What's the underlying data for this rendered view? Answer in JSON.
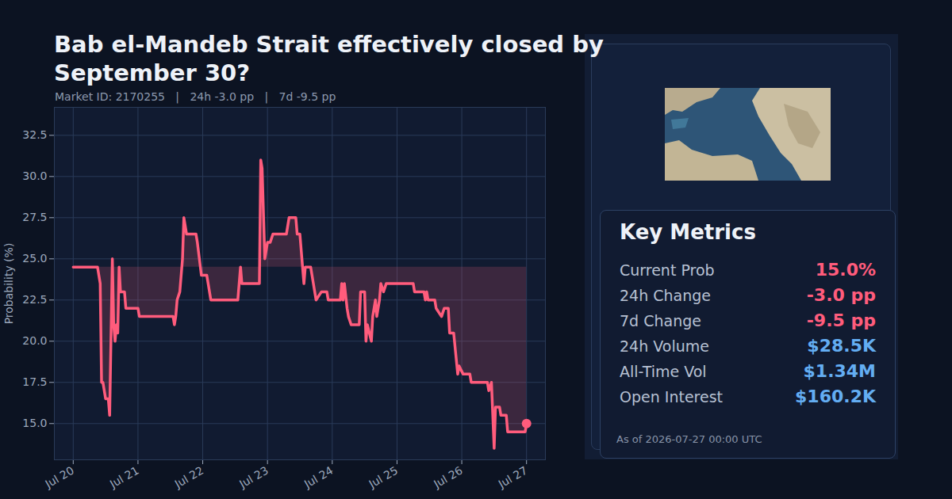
{
  "chart_data": {
    "type": "line",
    "title": "Bab el-Mandeb Strait effectively closed by September 30?",
    "subtitle": "Market ID: 2170255   |   24h -3.0 pp   |   7d -9.5 pp",
    "y_label": "Probability (%)",
    "color": "#ff5c7c",
    "grid": true,
    "x": [
      "2026-07-20T00:00",
      "2026-07-20T09:00",
      "2026-07-20T10:00",
      "2026-07-20T10:30",
      "2026-07-20T11:00",
      "2026-07-20T12:00",
      "2026-07-20T13:00",
      "2026-07-20T13:30",
      "2026-07-20T14:30",
      "2026-07-20T15:00",
      "2026-07-20T15:30",
      "2026-07-20T16:00",
      "2026-07-20T16:30",
      "2026-07-20T17:00",
      "2026-07-20T17:30",
      "2026-07-20T19:00",
      "2026-07-20T19:30",
      "2026-07-21T00:00",
      "2026-07-21T00:30",
      "2026-07-21T13:00",
      "2026-07-21T13:30",
      "2026-07-21T14:00",
      "2026-07-21T14:30",
      "2026-07-21T15:30",
      "2026-07-21T16:30",
      "2026-07-21T17:00",
      "2026-07-21T18:00",
      "2026-07-21T21:30",
      "2026-07-21T22:00",
      "2026-07-21T23:30",
      "2026-07-22T01:30",
      "2026-07-22T02:00",
      "2026-07-22T03:00",
      "2026-07-22T13:00",
      "2026-07-22T13:30",
      "2026-07-22T14:00",
      "2026-07-22T14:30",
      "2026-07-22T21:00",
      "2026-07-22T21:30",
      "2026-07-22T22:00",
      "2026-07-22T23:00",
      "2026-07-23T00:00",
      "2026-07-23T01:00",
      "2026-07-23T02:00",
      "2026-07-23T07:00",
      "2026-07-23T08:00",
      "2026-07-23T10:30",
      "2026-07-23T11:00",
      "2026-07-23T12:00",
      "2026-07-23T13:30",
      "2026-07-23T14:00",
      "2026-07-23T16:00",
      "2026-07-23T17:00",
      "2026-07-23T18:00",
      "2026-07-23T20:00",
      "2026-07-23T22:00",
      "2026-07-23T22:30",
      "2026-07-24T03:00",
      "2026-07-24T03:30",
      "2026-07-24T04:00",
      "2026-07-24T04:30",
      "2026-07-24T05:30",
      "2026-07-24T06:00",
      "2026-07-24T07:00",
      "2026-07-24T10:00",
      "2026-07-24T10:30",
      "2026-07-24T12:00",
      "2026-07-24T12:30",
      "2026-07-24T13:00",
      "2026-07-24T14:30",
      "2026-07-24T15:00",
      "2026-07-24T16:00",
      "2026-07-24T16:30",
      "2026-07-24T17:30",
      "2026-07-24T18:00",
      "2026-07-24T19:00",
      "2026-07-24T20:00",
      "2026-07-25T06:00",
      "2026-07-25T06:30",
      "2026-07-25T10:00",
      "2026-07-25T10:30",
      "2026-07-25T11:00",
      "2026-07-25T11:30",
      "2026-07-25T14:00",
      "2026-07-25T14:30",
      "2026-07-25T16:30",
      "2026-07-25T17:30",
      "2026-07-25T19:00",
      "2026-07-25T19:30",
      "2026-07-25T21:00",
      "2026-07-25T22:30",
      "2026-07-25T23:00",
      "2026-07-26T00:30",
      "2026-07-26T03:00",
      "2026-07-26T03:30",
      "2026-07-26T09:30",
      "2026-07-26T10:00",
      "2026-07-26T11:00",
      "2026-07-26T12:00",
      "2026-07-26T12:30",
      "2026-07-26T14:00",
      "2026-07-26T14:30",
      "2026-07-26T16:30",
      "2026-07-26T17:00",
      "2026-07-26T23:30",
      "2026-07-27T00:00"
    ],
    "values": [
      24.5,
      24.5,
      23.5,
      17.5,
      17.5,
      16.5,
      16.5,
      15.5,
      25.0,
      21.0,
      20.0,
      21.0,
      20.5,
      24.5,
      23.0,
      23.0,
      22.0,
      22.0,
      21.5,
      21.5,
      21.0,
      21.5,
      22.5,
      23.0,
      25.0,
      27.5,
      26.5,
      26.5,
      26.0,
      24.0,
      24.0,
      23.5,
      22.5,
      22.5,
      23.5,
      24.5,
      23.5,
      23.5,
      31.0,
      30.5,
      25.0,
      26.0,
      26.0,
      26.5,
      26.5,
      27.5,
      27.5,
      26.5,
      26.5,
      23.5,
      24.5,
      24.5,
      23.5,
      22.5,
      23.0,
      23.0,
      22.5,
      22.5,
      23.5,
      22.5,
      23.5,
      22.0,
      21.5,
      21.0,
      21.0,
      23.0,
      23.0,
      20.0,
      21.0,
      20.0,
      21.5,
      22.5,
      21.5,
      22.5,
      23.5,
      23.0,
      23.5,
      23.5,
      23.0,
      23.0,
      22.5,
      23.0,
      22.5,
      22.5,
      22.0,
      21.5,
      22.0,
      22.0,
      20.5,
      20.5,
      18.0,
      18.5,
      18.0,
      18.0,
      17.5,
      17.5,
      17.0,
      17.5,
      13.5,
      16.0,
      16.0,
      15.5,
      15.5,
      14.5,
      14.5,
      15.0
    ],
    "xlim": [
      "2026-07-19T17:00",
      "2026-07-27T07:00"
    ],
    "xticks": [
      {
        "value": "2026-07-20T00:00",
        "label": "Jul 20"
      },
      {
        "value": "2026-07-21T00:00",
        "label": "Jul 21"
      },
      {
        "value": "2026-07-22T00:00",
        "label": "Jul 22"
      },
      {
        "value": "2026-07-23T00:00",
        "label": "Jul 23"
      },
      {
        "value": "2026-07-24T00:00",
        "label": "Jul 24"
      },
      {
        "value": "2026-07-25T00:00",
        "label": "Jul 25"
      },
      {
        "value": "2026-07-26T00:00",
        "label": "Jul 26"
      },
      {
        "value": "2026-07-27T00:00",
        "label": "Jul 27"
      }
    ],
    "ylim": [
      12.8,
      34.2
    ],
    "yticks": [
      {
        "value": 15,
        "label": "15.0"
      },
      {
        "value": 17.5,
        "label": "17.5"
      },
      {
        "value": 20,
        "label": "20.0"
      },
      {
        "value": 22.5,
        "label": "22.5"
      },
      {
        "value": 25,
        "label": "25.0"
      },
      {
        "value": 27.5,
        "label": "27.5"
      },
      {
        "value": 30,
        "label": "30.0"
      },
      {
        "value": 32.5,
        "label": "32.5"
      }
    ]
  },
  "panel": {
    "heading": "Key Metrics",
    "metrics": [
      {
        "label": "Current Prob",
        "value": "15.0%",
        "color": "#ff5c7c"
      },
      {
        "label": "24h Change",
        "value": "-3.0 pp",
        "color": "#ff5c7c"
      },
      {
        "label": "7d Change",
        "value": "-9.5 pp",
        "color": "#ff5c7c"
      },
      {
        "label": "24h Volume",
        "value": "$28.5K",
        "color": "#63adf2"
      },
      {
        "label": "All-Time Vol",
        "value": "$1.34M",
        "color": "#63adf2"
      },
      {
        "label": "Open Interest",
        "value": "$160.2K",
        "color": "#63adf2"
      }
    ],
    "footnote": "As of 2026-07-27 00:00 UTC"
  }
}
